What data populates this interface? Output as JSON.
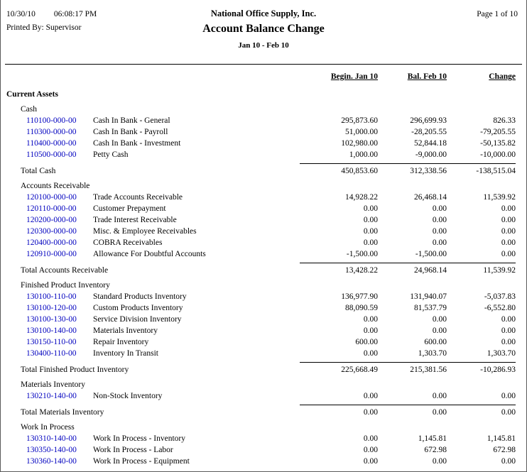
{
  "page": {
    "date": "10/30/10",
    "time": "06:08:17 PM",
    "company": "National Office Supply, Inc.",
    "page_label": "Page 1 of 10",
    "printed_by": "Printed By: Supervisor",
    "title": "Account Balance Change",
    "period": "Jan 10 - Feb 10"
  },
  "columns": [
    "Begin. Jan 10",
    "Bal. Feb 10",
    "Change"
  ],
  "colors": {
    "account_link": "#0000bf",
    "text": "#000000",
    "rule": "#000000"
  },
  "report": {
    "group": "Current Assets",
    "sections": [
      {
        "name": "Cash",
        "rows": [
          {
            "account": "110100-000-00",
            "desc": "Cash In Bank - General",
            "begin": "295,873.60",
            "bal": "296,699.93",
            "change": "826.33"
          },
          {
            "account": "110300-000-00",
            "desc": "Cash In Bank - Payroll",
            "begin": "51,000.00",
            "bal": "-28,205.55",
            "change": "-79,205.55"
          },
          {
            "account": "110400-000-00",
            "desc": "Cash In Bank - Investment",
            "begin": "102,980.00",
            "bal": "52,844.18",
            "change": "-50,135.82"
          },
          {
            "account": "110500-000-00",
            "desc": "Petty Cash",
            "begin": "1,000.00",
            "bal": "-9,000.00",
            "change": "-10,000.00"
          }
        ],
        "total": {
          "label": "Total Cash",
          "begin": "450,853.60",
          "bal": "312,338.56",
          "change": "-138,515.04"
        }
      },
      {
        "name": "Accounts Receivable",
        "rows": [
          {
            "account": "120100-000-00",
            "desc": "Trade Accounts Receivable",
            "begin": "14,928.22",
            "bal": "26,468.14",
            "change": "11,539.92"
          },
          {
            "account": "120110-000-00",
            "desc": "Customer Prepayment",
            "begin": "0.00",
            "bal": "0.00",
            "change": "0.00"
          },
          {
            "account": "120200-000-00",
            "desc": "Trade Interest Receivable",
            "begin": "0.00",
            "bal": "0.00",
            "change": "0.00"
          },
          {
            "account": "120300-000-00",
            "desc": "Misc. & Employee Receivables",
            "begin": "0.00",
            "bal": "0.00",
            "change": "0.00"
          },
          {
            "account": "120400-000-00",
            "desc": "COBRA Receivables",
            "begin": "0.00",
            "bal": "0.00",
            "change": "0.00"
          },
          {
            "account": "120910-000-00",
            "desc": "Allowance For Doubtful Accounts",
            "begin": "-1,500.00",
            "bal": "-1,500.00",
            "change": "0.00"
          }
        ],
        "total": {
          "label": "Total Accounts Receivable",
          "begin": "13,428.22",
          "bal": "24,968.14",
          "change": "11,539.92"
        }
      },
      {
        "name": "Finished Product Inventory",
        "rows": [
          {
            "account": "130100-110-00",
            "desc": "Standard Products Inventory",
            "begin": "136,977.90",
            "bal": "131,940.07",
            "change": "-5,037.83"
          },
          {
            "account": "130100-120-00",
            "desc": "Custom Products Inventory",
            "begin": "88,090.59",
            "bal": "81,537.79",
            "change": "-6,552.80"
          },
          {
            "account": "130100-130-00",
            "desc": "Service Division Inventory",
            "begin": "0.00",
            "bal": "0.00",
            "change": "0.00"
          },
          {
            "account": "130100-140-00",
            "desc": "Materials Inventory",
            "begin": "0.00",
            "bal": "0.00",
            "change": "0.00"
          },
          {
            "account": "130150-110-00",
            "desc": "Repair Inventory",
            "begin": "600.00",
            "bal": "600.00",
            "change": "0.00"
          },
          {
            "account": "130400-110-00",
            "desc": "Inventory In Transit",
            "begin": "0.00",
            "bal": "1,303.70",
            "change": "1,303.70"
          }
        ],
        "total": {
          "label": "Total Finished Product Inventory",
          "begin": "225,668.49",
          "bal": "215,381.56",
          "change": "-10,286.93"
        }
      },
      {
        "name": "Materials Inventory",
        "rows": [
          {
            "account": "130210-140-00",
            "desc": "Non-Stock Inventory",
            "begin": "0.00",
            "bal": "0.00",
            "change": "0.00"
          }
        ],
        "total": {
          "label": "Total Materials Inventory",
          "begin": "0.00",
          "bal": "0.00",
          "change": "0.00"
        }
      },
      {
        "name": "Work In Process",
        "rows": [
          {
            "account": "130310-140-00",
            "desc": "Work In Process - Inventory",
            "begin": "0.00",
            "bal": "1,145.81",
            "change": "1,145.81"
          },
          {
            "account": "130350-140-00",
            "desc": "Work In Process - Labor",
            "begin": "0.00",
            "bal": "672.98",
            "change": "672.98"
          },
          {
            "account": "130360-140-00",
            "desc": "Work In Process - Equipment",
            "begin": "0.00",
            "bal": "0.00",
            "change": "0.00"
          }
        ],
        "total": null
      }
    ]
  }
}
